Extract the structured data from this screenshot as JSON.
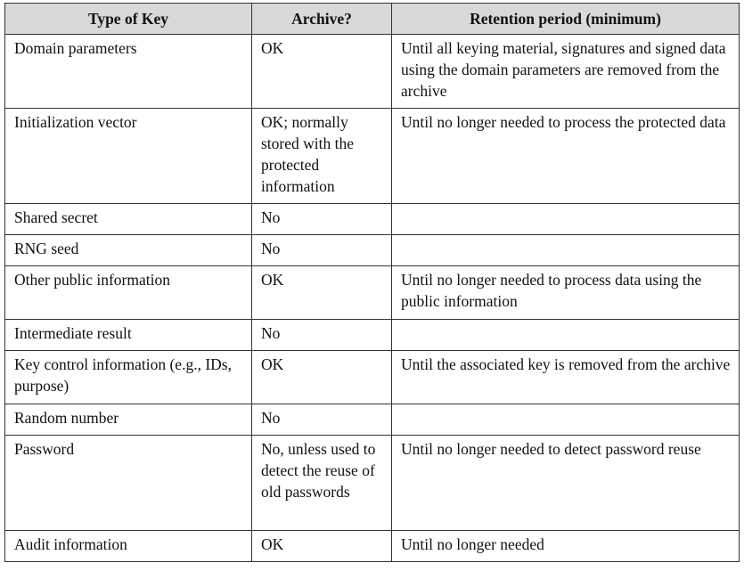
{
  "table": {
    "headers": [
      "Type of Key",
      "Archive?",
      "Retention period (minimum)"
    ],
    "rows": [
      {
        "type": "Domain parameters",
        "archive": "OK",
        "retention": "Until all keying material, signatures and signed data using the domain parameters are removed from the archive"
      },
      {
        "type": "Initialization vector",
        "archive": "OK; normally stored with the protected information",
        "retention": "Until no longer needed to process the protected data"
      },
      {
        "type": "Shared secret",
        "archive": "No",
        "retention": ""
      },
      {
        "type": "RNG seed",
        "archive": "No",
        "retention": ""
      },
      {
        "type": "Other public information",
        "archive": "OK",
        "retention": "Until no longer needed to process data using the public information"
      },
      {
        "type": "Intermediate result",
        "archive": "No",
        "retention": ""
      },
      {
        "type": "Key control information (e.g., IDs, purpose)",
        "archive": "OK",
        "retention": "Until the associated key is removed from the archive"
      },
      {
        "type": "Random number",
        "archive": "No",
        "retention": ""
      },
      {
        "type": "Password",
        "archive": "No, unless used to detect the reuse of old passwords",
        "retention": "Until no longer needed to detect password reuse"
      },
      {
        "type": "Audit information",
        "archive": "OK",
        "retention": "Until no longer needed"
      }
    ]
  }
}
